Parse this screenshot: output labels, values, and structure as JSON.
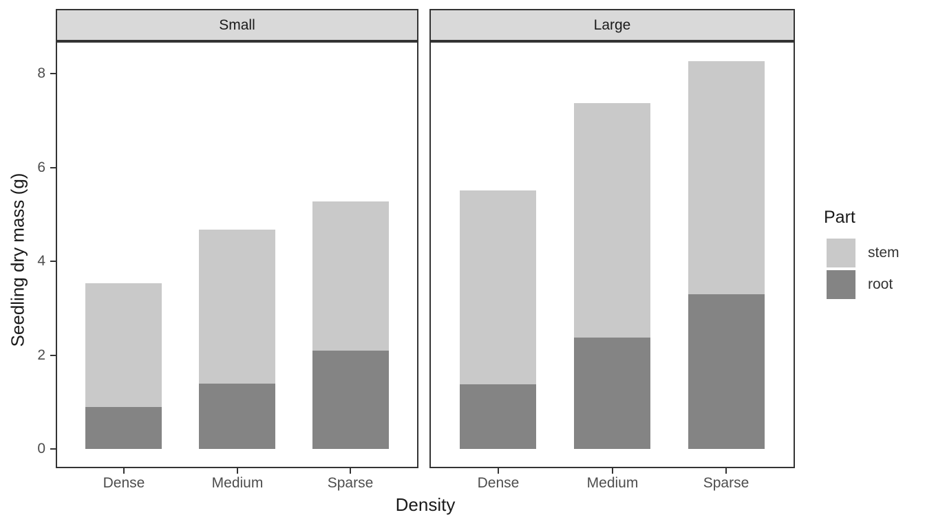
{
  "figure": {
    "y_axis_title": "Seedling dry mass (g)",
    "x_axis_title": "Density",
    "legend": {
      "title": "Part",
      "entries": [
        {
          "label": "stem",
          "series": "stem"
        },
        {
          "label": "root",
          "series": "root"
        }
      ]
    }
  },
  "chart_data": {
    "type": "bar",
    "stacked": true,
    "title": "",
    "xlabel": "Density",
    "ylabel": "Seedling dry mass (g)",
    "ylim": [
      0,
      8.7
    ],
    "yticks": [
      0,
      2,
      4,
      6,
      8
    ],
    "ytick_labels": [
      "0",
      "2",
      "4",
      "6",
      "8"
    ],
    "grid": false,
    "legend_title": "Part",
    "legend_position": "right",
    "legend_order": [
      "stem",
      "root"
    ],
    "colors": {
      "stem": "#C9C9C9",
      "root": "#848484"
    },
    "categories": [
      "Dense",
      "Medium",
      "Sparse"
    ],
    "facets": [
      {
        "label": "Small",
        "categories": [
          "Dense",
          "Medium",
          "Sparse"
        ],
        "series": [
          {
            "name": "root",
            "values": [
              0.89,
              1.4,
              2.1
            ]
          },
          {
            "name": "stem",
            "values": [
              2.64,
              3.29,
              3.18
            ]
          }
        ],
        "totals": [
          3.53,
          4.69,
          5.28
        ]
      },
      {
        "label": "Large",
        "categories": [
          "Dense",
          "Medium",
          "Sparse"
        ],
        "series": [
          {
            "name": "root",
            "values": [
              1.38,
              2.37,
              3.3
            ]
          },
          {
            "name": "stem",
            "values": [
              4.13,
              5.0,
              4.97
            ]
          }
        ],
        "totals": [
          5.51,
          7.37,
          8.27
        ]
      }
    ]
  }
}
